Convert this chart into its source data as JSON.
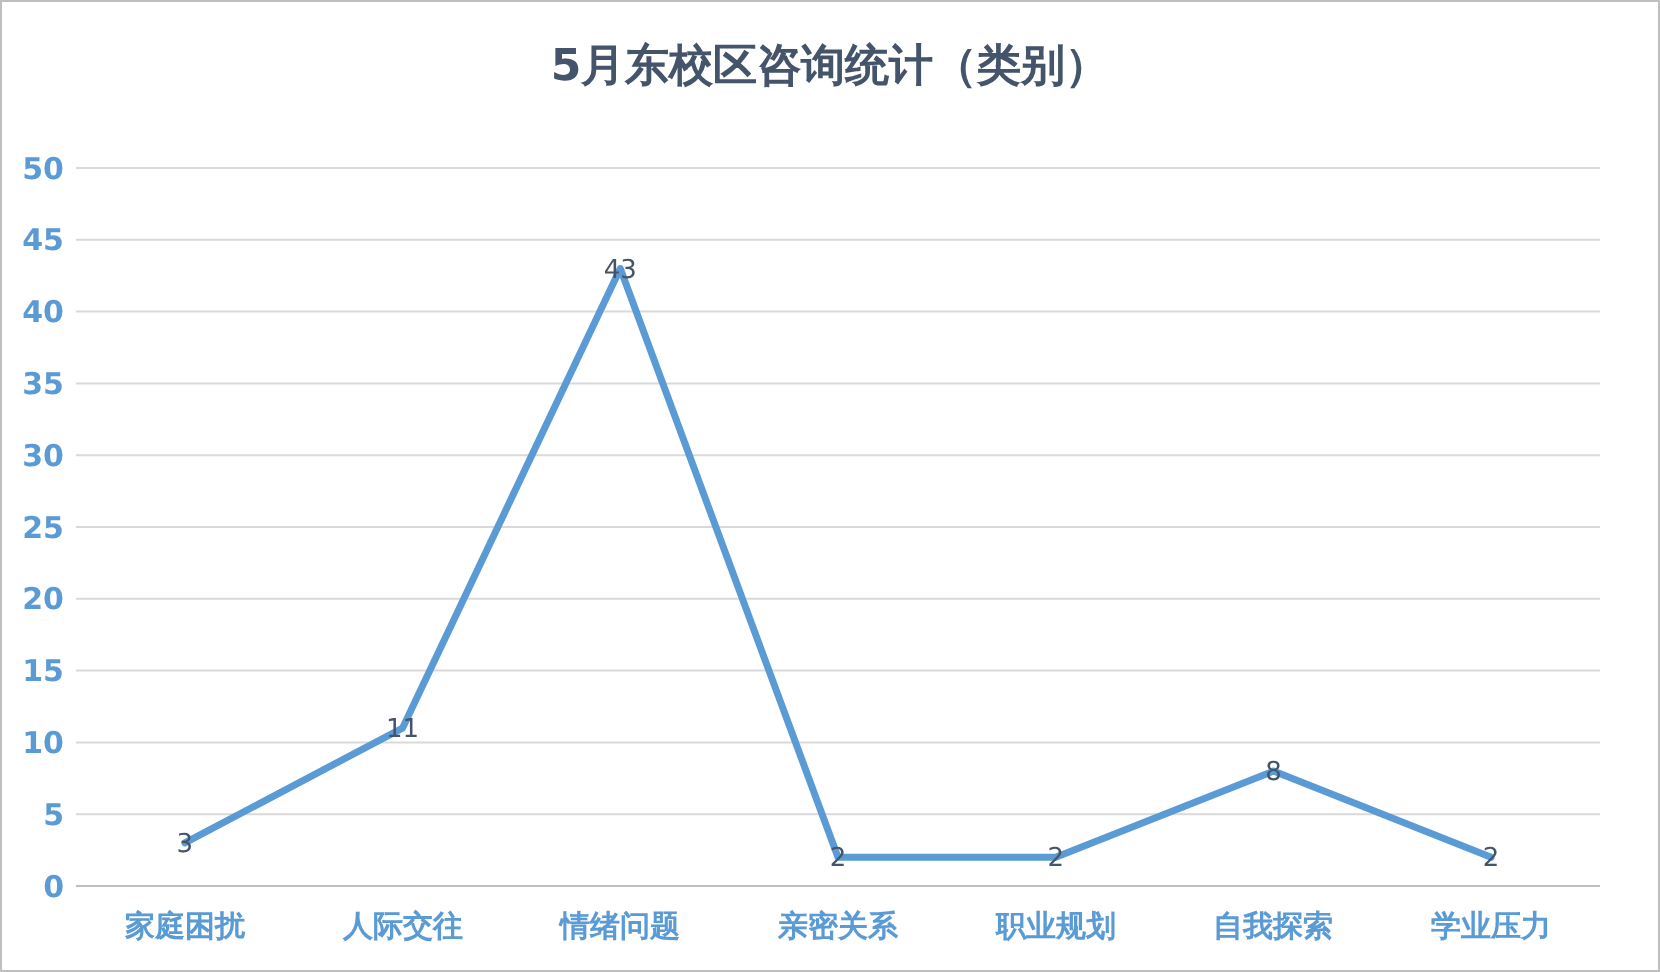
{
  "chart_data": {
    "type": "line",
    "title": "5月东校区咨询统计（类别）",
    "categories": [
      "家庭困扰",
      "人际交往",
      "情绪问题",
      "亲密关系",
      "职业规划",
      "自我探索",
      "学业压力"
    ],
    "series": [
      {
        "color": "#5b9bd5",
        "values": [
          3,
          11,
          43,
          2,
          2,
          8,
          2
        ]
      }
    ],
    "ylim": [
      0,
      50
    ],
    "yticks": [
      0,
      5,
      10,
      15,
      20,
      25,
      30,
      35,
      40,
      45,
      50
    ],
    "grid": "y",
    "data_labels": true,
    "marker": "none",
    "line_style": "solid"
  }
}
